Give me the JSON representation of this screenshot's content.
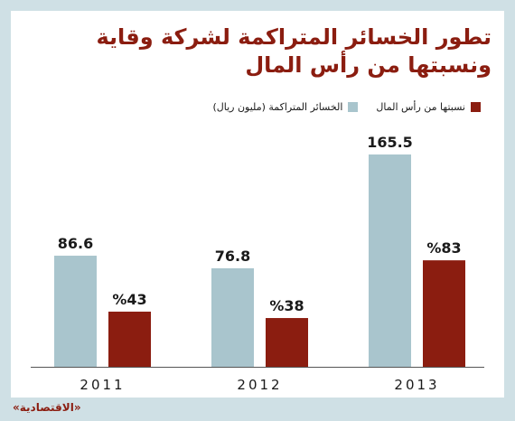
{
  "title_line1": "تطور الخسائر المتراكمة لشركة وقاية",
  "title_line2": "ونسبتها من رأس المال",
  "source": "«الاقتصادية»",
  "colors": {
    "background": "#cfe0e5",
    "losses": "#a9c5cd",
    "ratio": "#8b1d10",
    "title": "#8b1d10"
  },
  "chart_data": {
    "type": "bar",
    "categories": [
      "2011",
      "2012",
      "2013"
    ],
    "series": [
      {
        "name": "الخسائر المتراكمة (مليون ريال)",
        "values": [
          86.6,
          76.8,
          165.5
        ],
        "labels": [
          "86.6",
          "76.8",
          "165.5"
        ],
        "color": "#a9c5cd"
      },
      {
        "name": "نسبتها من رأس المال",
        "values": [
          43,
          38,
          83
        ],
        "labels": [
          "%43",
          "%38",
          "%83"
        ],
        "color": "#8b1d10"
      }
    ],
    "legend_position": "top",
    "grid": false
  }
}
